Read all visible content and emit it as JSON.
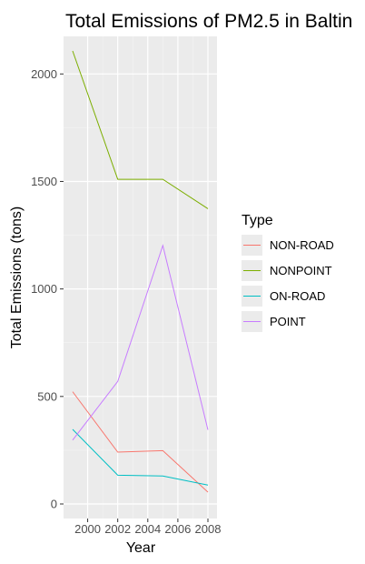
{
  "chart_data": {
    "type": "line",
    "title": "Total Emissions of PM2.5 in Baltin",
    "xlabel": "Year",
    "ylabel": "Total Emissions (tons)",
    "x": [
      1999,
      2002,
      2005,
      2008
    ],
    "x_ticks": [
      2000,
      2002,
      2004,
      2006,
      2008
    ],
    "x_tick_labels": [
      "2000",
      "2002",
      "2004",
      "2006",
      "2008"
    ],
    "xlim": [
      1999,
      2008
    ],
    "y_ticks": [
      0,
      500,
      1000,
      1500,
      2000
    ],
    "y_tick_labels": [
      "0",
      "500",
      "1000",
      "1500",
      "2000"
    ],
    "ylim": [
      0,
      2107
    ],
    "grid": true,
    "background": "#ebebeb",
    "legend": {
      "title": "Type",
      "position": "right"
    },
    "series": [
      {
        "name": "NON-ROAD",
        "color": "#F8766D",
        "values": [
          522,
          241,
          248,
          55
        ]
      },
      {
        "name": "NONPOINT",
        "color": "#7CAE00",
        "values": [
          2107,
          1510,
          1510,
          1373
        ]
      },
      {
        "name": "ON-ROAD",
        "color": "#00BFC4",
        "values": [
          347,
          134,
          130,
          88
        ]
      },
      {
        "name": "POINT",
        "color": "#C77CFF",
        "values": [
          297,
          570,
          1202,
          345
        ]
      }
    ]
  }
}
